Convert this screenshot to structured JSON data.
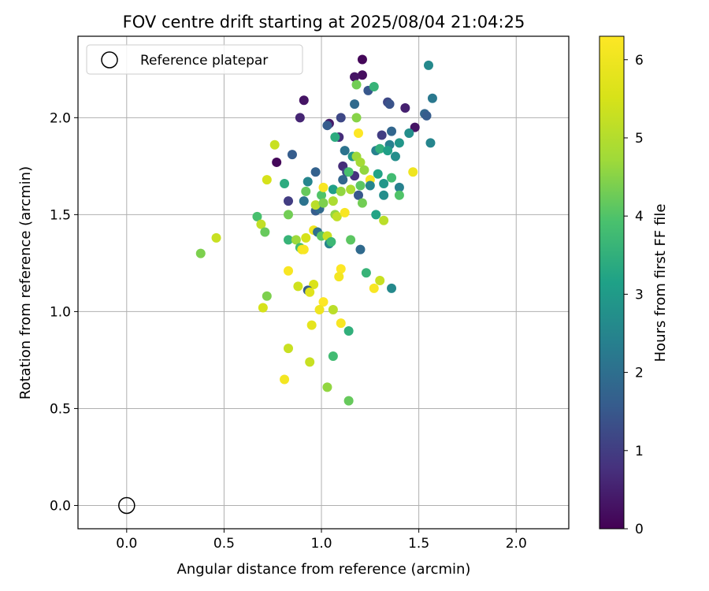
{
  "chart_data": {
    "type": "scatter",
    "title": "FOV centre drift starting at 2025/08/04 21:04:25",
    "xlabel": "Angular distance from reference (arcmin)",
    "ylabel": "Rotation from reference (arcmin)",
    "xlim": [
      -0.25,
      2.27
    ],
    "ylim": [
      -0.12,
      2.42
    ],
    "xticks": [
      0.0,
      0.5,
      1.0,
      1.5,
      2.0
    ],
    "xtick_labels": [
      "0.0",
      "0.5",
      "1.0",
      "1.5",
      "2.0"
    ],
    "yticks": [
      0.0,
      0.5,
      1.0,
      1.5,
      2.0
    ],
    "ytick_labels": [
      "0.0",
      "0.5",
      "1.0",
      "1.5",
      "2.0"
    ],
    "grid": true,
    "legend": {
      "position": "top-left",
      "entries": [
        {
          "label": "Reference platepar",
          "marker": "open-circle"
        }
      ]
    },
    "reference_point": {
      "x": 0.0,
      "y": 0.0
    },
    "colorbar": {
      "label": "Hours from first FF file",
      "range": [
        0,
        6.3
      ],
      "ticks": [
        0,
        1,
        2,
        3,
        4,
        5,
        6
      ],
      "tick_labels": [
        "0",
        "1",
        "2",
        "3",
        "4",
        "5",
        "6"
      ],
      "colormap": "viridis"
    },
    "points": [
      [
        1.21,
        2.3,
        0.1
      ],
      [
        1.21,
        2.22,
        0.2
      ],
      [
        1.17,
        2.21,
        0.3
      ],
      [
        1.24,
        2.14,
        1.5
      ],
      [
        1.17,
        2.07,
        1.9
      ],
      [
        1.34,
        2.08,
        1.2
      ],
      [
        1.35,
        2.07,
        1.4
      ],
      [
        1.43,
        2.05,
        0.5
      ],
      [
        0.91,
        2.09,
        0.3
      ],
      [
        0.89,
        2.0,
        0.6
      ],
      [
        1.1,
        2.0,
        1.2
      ],
      [
        1.04,
        1.97,
        0.4
      ],
      [
        1.03,
        1.96,
        1.6
      ],
      [
        1.18,
        2.17,
        4.3
      ],
      [
        1.27,
        2.16,
        3.6
      ],
      [
        1.18,
        2.0,
        4.5
      ],
      [
        1.55,
        2.27,
        2.6
      ],
      [
        1.57,
        2.1,
        2.2
      ],
      [
        1.53,
        2.02,
        1.8
      ],
      [
        1.54,
        2.01,
        1.6
      ],
      [
        1.48,
        1.95,
        0.3
      ],
      [
        1.31,
        1.91,
        1.0
      ],
      [
        1.36,
        1.93,
        1.8
      ],
      [
        1.45,
        1.92,
        2.7
      ],
      [
        1.56,
        1.87,
        2.5
      ],
      [
        1.4,
        1.87,
        2.9
      ],
      [
        1.35,
        1.86,
        2.4
      ],
      [
        1.09,
        1.9,
        0.7
      ],
      [
        1.07,
        1.9,
        3.4
      ],
      [
        1.19,
        1.92,
        6.3
      ],
      [
        0.76,
        1.86,
        5.3
      ],
      [
        0.85,
        1.81,
        1.6
      ],
      [
        0.77,
        1.77,
        0.1
      ],
      [
        1.12,
        1.83,
        2.1
      ],
      [
        1.16,
        1.8,
        2.9
      ],
      [
        1.18,
        1.8,
        4.7
      ],
      [
        1.28,
        1.83,
        2.4
      ],
      [
        1.3,
        1.84,
        3.5
      ],
      [
        1.34,
        1.83,
        3.1
      ],
      [
        1.38,
        1.8,
        2.7
      ],
      [
        0.97,
        1.72,
        1.7
      ],
      [
        1.11,
        1.75,
        0.7
      ],
      [
        1.13,
        1.72,
        1.2
      ],
      [
        1.17,
        1.7,
        0.8
      ],
      [
        1.2,
        1.77,
        4.8
      ],
      [
        1.22,
        1.73,
        4.6
      ],
      [
        1.14,
        1.72,
        3.9
      ],
      [
        1.29,
        1.71,
        3.2
      ],
      [
        1.47,
        1.72,
        6.0
      ],
      [
        0.72,
        1.68,
        5.5
      ],
      [
        0.81,
        1.66,
        3.4
      ],
      [
        0.93,
        1.67,
        2.5
      ],
      [
        1.06,
        1.63,
        3.1
      ],
      [
        1.11,
        1.68,
        1.8
      ],
      [
        1.1,
        1.62,
        4.6
      ],
      [
        1.15,
        1.63,
        4.9
      ],
      [
        1.19,
        1.6,
        1.5
      ],
      [
        1.2,
        1.65,
        4.1
      ],
      [
        1.25,
        1.68,
        6.2
      ],
      [
        1.25,
        1.65,
        2.5
      ],
      [
        1.32,
        1.66,
        2.9
      ],
      [
        1.36,
        1.69,
        3.8
      ],
      [
        1.4,
        1.64,
        2.4
      ],
      [
        1.4,
        1.6,
        4.0
      ],
      [
        1.32,
        1.6,
        2.7
      ],
      [
        0.83,
        1.57,
        1.0
      ],
      [
        0.91,
        1.57,
        2.1
      ],
      [
        0.92,
        1.62,
        4.2
      ],
      [
        1.0,
        1.6,
        4.0
      ],
      [
        1.01,
        1.64,
        6.2
      ],
      [
        1.06,
        1.57,
        4.9
      ],
      [
        0.97,
        1.52,
        1.6
      ],
      [
        0.99,
        1.53,
        1.9
      ],
      [
        0.97,
        1.55,
        5.1
      ],
      [
        1.01,
        1.56,
        4.4
      ],
      [
        1.07,
        1.5,
        4.6
      ],
      [
        1.08,
        1.49,
        5.2
      ],
      [
        1.12,
        1.51,
        6.2
      ],
      [
        1.21,
        1.56,
        4.3
      ],
      [
        1.28,
        1.5,
        3.2
      ],
      [
        1.32,
        1.47,
        5.1
      ],
      [
        0.67,
        1.49,
        3.9
      ],
      [
        0.69,
        1.45,
        5.2
      ],
      [
        0.71,
        1.41,
        4.2
      ],
      [
        0.83,
        1.5,
        4.3
      ],
      [
        0.83,
        1.37,
        3.6
      ],
      [
        0.87,
        1.37,
        4.7
      ],
      [
        0.89,
        1.33,
        3.8
      ],
      [
        0.92,
        1.38,
        5.5
      ],
      [
        0.96,
        1.42,
        6.0
      ],
      [
        0.98,
        1.41,
        2.0
      ],
      [
        1.0,
        1.39,
        4.1
      ],
      [
        1.03,
        1.39,
        5.3
      ],
      [
        1.04,
        1.35,
        2.5
      ],
      [
        1.05,
        1.36,
        3.7
      ],
      [
        1.15,
        1.37,
        4.1
      ],
      [
        1.2,
        1.32,
        1.9
      ],
      [
        0.46,
        1.38,
        5.3
      ],
      [
        0.38,
        1.3,
        4.4
      ],
      [
        0.9,
        1.32,
        6.0
      ],
      [
        0.91,
        1.32,
        6.2
      ],
      [
        0.83,
        1.21,
        6.2
      ],
      [
        1.1,
        1.22,
        6.3
      ],
      [
        1.09,
        1.18,
        6.1
      ],
      [
        1.23,
        1.2,
        3.6
      ],
      [
        1.3,
        1.16,
        5.3
      ],
      [
        1.27,
        1.12,
        6.2
      ],
      [
        1.36,
        1.12,
        2.6
      ],
      [
        0.88,
        1.13,
        5.4
      ],
      [
        0.96,
        1.14,
        5.6
      ],
      [
        0.93,
        1.11,
        1.6
      ],
      [
        0.94,
        1.1,
        5.7
      ],
      [
        0.72,
        1.08,
        4.4
      ],
      [
        1.01,
        1.05,
        6.3
      ],
      [
        0.99,
        1.01,
        6.0
      ],
      [
        1.06,
        1.01,
        5.1
      ],
      [
        0.7,
        1.02,
        5.5
      ],
      [
        1.1,
        0.94,
        6.2
      ],
      [
        0.95,
        0.93,
        5.8
      ],
      [
        1.14,
        0.9,
        3.5
      ],
      [
        0.83,
        0.81,
        5.3
      ],
      [
        1.06,
        0.77,
        3.8
      ],
      [
        0.94,
        0.74,
        5.3
      ],
      [
        0.81,
        0.65,
        6.1
      ],
      [
        1.03,
        0.61,
        4.6
      ],
      [
        1.14,
        0.54,
        4.2
      ]
    ]
  }
}
